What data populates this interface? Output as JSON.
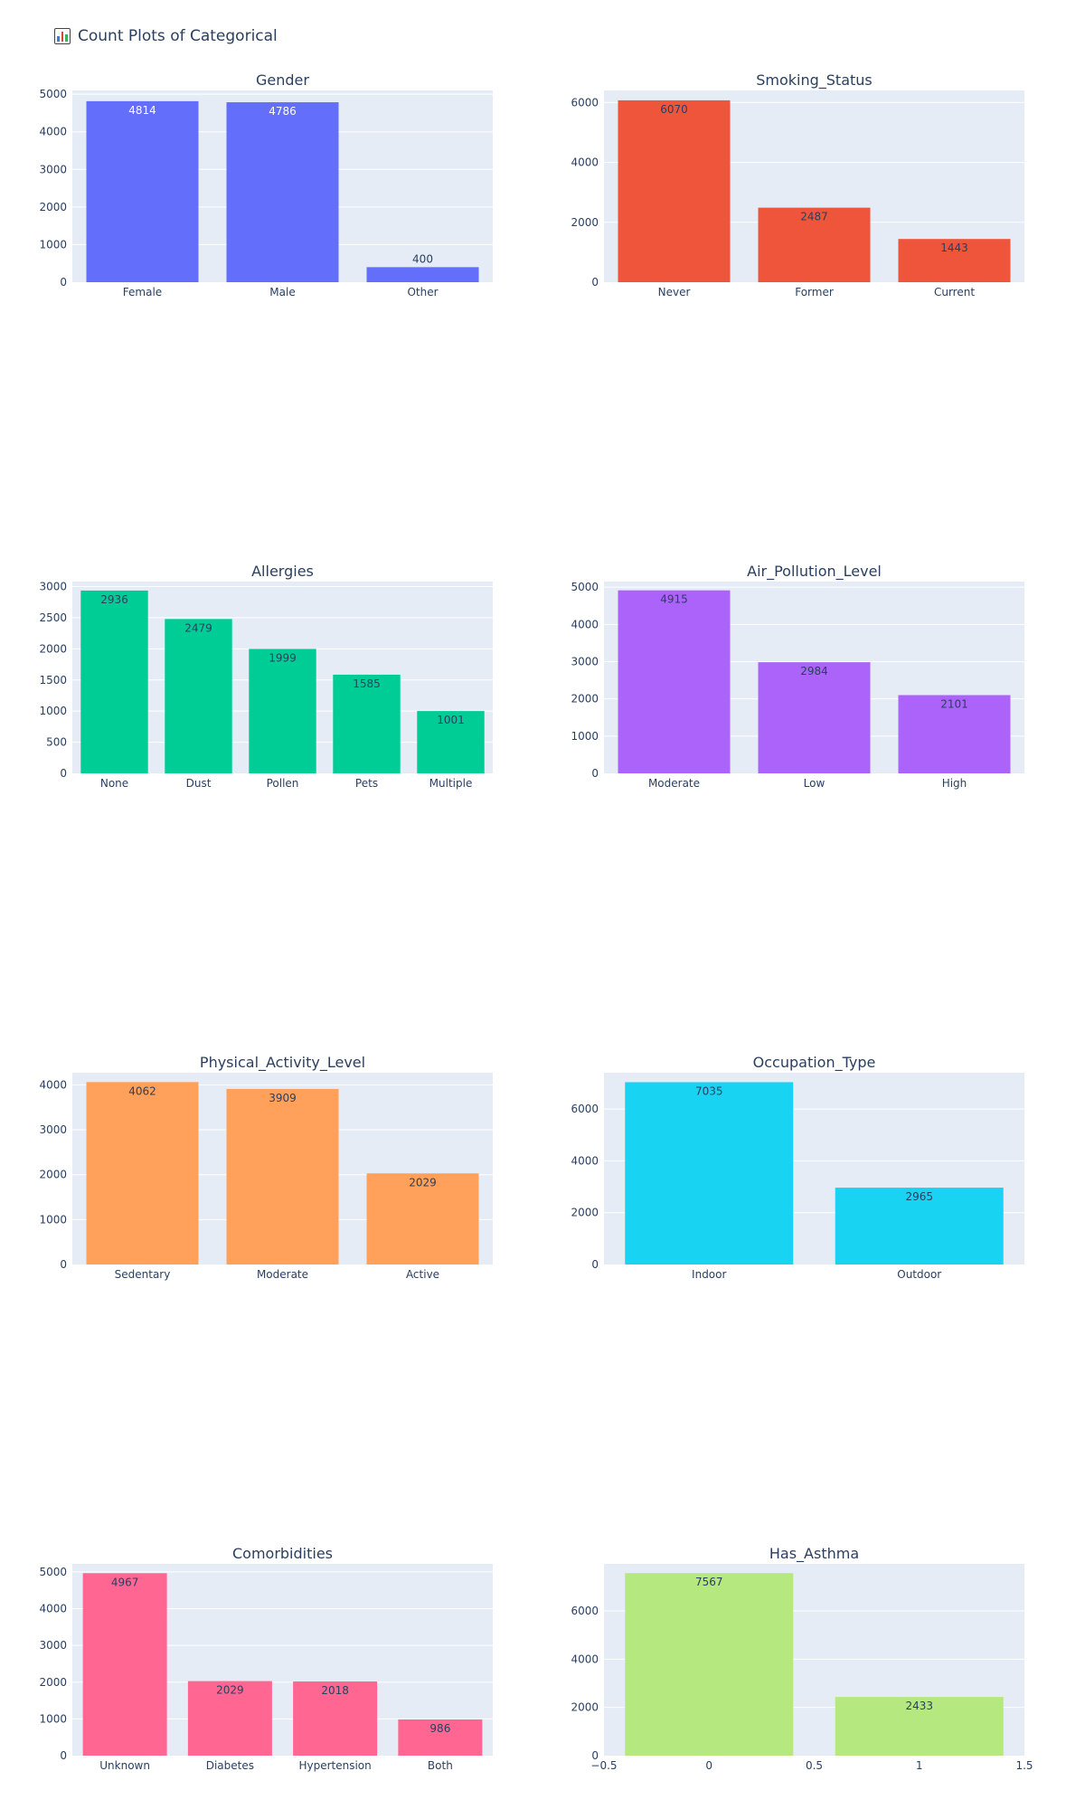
{
  "figure_title": "Count Plots of Categorical",
  "figure_icon": "bar-chart-icon",
  "text_color": "#2a3f5f",
  "chart_data": [
    {
      "type": "bar",
      "title": "Gender",
      "color": "#636efa",
      "label_color": "#ffffff",
      "categories": [
        "Female",
        "Male",
        "Other"
      ],
      "values": [
        4814,
        4786,
        400
      ],
      "ylim": [
        0,
        5100
      ],
      "yticks": [
        0,
        1000,
        2000,
        3000,
        4000,
        5000
      ]
    },
    {
      "type": "bar",
      "title": "Smoking_Status",
      "color": "#ef553b",
      "label_color": "#2a3f5f",
      "categories": [
        "Never",
        "Former",
        "Current"
      ],
      "values": [
        6070,
        2487,
        1443
      ],
      "ylim": [
        0,
        6400
      ],
      "yticks": [
        0,
        2000,
        4000,
        6000
      ]
    },
    {
      "type": "bar",
      "title": "Allergies",
      "color": "#00cc96",
      "label_color": "#2a3f5f",
      "categories": [
        "None",
        "Dust",
        "Pollen",
        "Pets",
        "Multiple"
      ],
      "values": [
        2936,
        2479,
        1999,
        1585,
        1001
      ],
      "ylim": [
        0,
        3080
      ],
      "yticks": [
        0,
        500,
        1000,
        1500,
        2000,
        2500,
        3000
      ]
    },
    {
      "type": "bar",
      "title": "Air_Pollution_Level",
      "color": "#ab63fa",
      "label_color": "#2a3f5f",
      "categories": [
        "Moderate",
        "Low",
        "High"
      ],
      "values": [
        4915,
        2984,
        2101
      ],
      "ylim": [
        0,
        5150
      ],
      "yticks": [
        0,
        1000,
        2000,
        3000,
        4000,
        5000
      ]
    },
    {
      "type": "bar",
      "title": "Physical_Activity_Level",
      "color": "#ffa15a",
      "label_color": "#2a3f5f",
      "categories": [
        "Sedentary",
        "Moderate",
        "Active"
      ],
      "values": [
        4062,
        3909,
        2029
      ],
      "ylim": [
        0,
        4270
      ],
      "yticks": [
        0,
        1000,
        2000,
        3000,
        4000
      ]
    },
    {
      "type": "bar",
      "title": "Occupation_Type",
      "color": "#19d3f3",
      "label_color": "#2a3f5f",
      "categories": [
        "Indoor",
        "Outdoor"
      ],
      "values": [
        7035,
        2965
      ],
      "ylim": [
        0,
        7400
      ],
      "yticks": [
        0,
        2000,
        4000,
        6000
      ]
    },
    {
      "type": "bar",
      "title": "Comorbidities",
      "color": "#ff6692",
      "label_color": "#2a3f5f",
      "categories": [
        "Unknown",
        "Diabetes",
        "Hypertension",
        "Both"
      ],
      "values": [
        4967,
        2029,
        2018,
        986
      ],
      "ylim": [
        0,
        5220
      ],
      "yticks": [
        0,
        1000,
        2000,
        3000,
        4000,
        5000
      ]
    },
    {
      "type": "bar",
      "title": "Has_Asthma",
      "color": "#b6e880",
      "label_color": "#2a3f5f",
      "numeric_x": true,
      "x": [
        0,
        1
      ],
      "values": [
        7567,
        2433
      ],
      "bar_width": 0.8,
      "xlim": [
        -0.5,
        1.5
      ],
      "xticks": [
        -0.5,
        0,
        0.5,
        1,
        1.5
      ],
      "xtick_labels": [
        "−0.5",
        "0",
        "0.5",
        "1",
        "1.5"
      ],
      "ylim": [
        0,
        7950
      ],
      "yticks": [
        0,
        2000,
        4000,
        6000
      ]
    }
  ]
}
